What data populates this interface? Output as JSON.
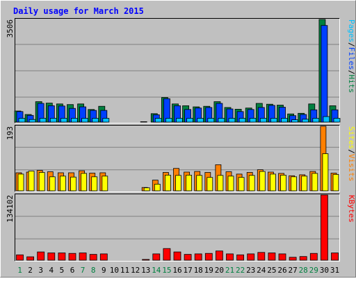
{
  "chart_data": {
    "type": "bar",
    "title": "Daily usage for March 2015",
    "categories": [
      "1",
      "2",
      "3",
      "4",
      "5",
      "6",
      "7",
      "8",
      "9",
      "10",
      "11",
      "12",
      "13",
      "14",
      "15",
      "16",
      "17",
      "18",
      "19",
      "20",
      "21",
      "22",
      "23",
      "24",
      "25",
      "26",
      "27",
      "28",
      "29",
      "30",
      "31"
    ],
    "weekend_days": [
      "1",
      "7",
      "8",
      "14",
      "15",
      "21",
      "22",
      "28",
      "29"
    ],
    "panels": [
      {
        "id": "hits-files-pages",
        "ymax": 3506,
        "ymax_label": "3506",
        "right_label": [
          "Pages",
          "/",
          "Files",
          "/",
          "Hits"
        ],
        "series": [
          {
            "name": "Hits",
            "color": "#008040",
            "values": [
              380,
              260,
              700,
              650,
              620,
              600,
              620,
              430,
              540,
              0,
              0,
              0,
              15,
              290,
              840,
              620,
              560,
              520,
              540,
              700,
              500,
              440,
              480,
              640,
              610,
              580,
              280,
              300,
              620,
              3506,
              560
            ]
          },
          {
            "name": "Files",
            "color": "#0040ff",
            "values": [
              360,
              230,
              640,
              560,
              550,
              470,
              520,
              400,
              400,
              0,
              0,
              0,
              10,
              250,
              800,
              560,
              430,
              480,
              500,
              640,
              450,
              360,
              430,
              500,
              570,
              510,
              220,
              260,
              420,
              3300,
              420
            ]
          },
          {
            "name": "Pages",
            "color": "#00c0ff",
            "values": [
              130,
              90,
              130,
              130,
              130,
              130,
              130,
              130,
              130,
              0,
              0,
              0,
              4,
              130,
              130,
              130,
              130,
              130,
              130,
              130,
              130,
              130,
              130,
              130,
              130,
              130,
              80,
              100,
              130,
              190,
              130
            ]
          }
        ]
      },
      {
        "id": "visits-sites",
        "ymax": 193,
        "ymax_label": "193",
        "right_label": [
          "Sites",
          "/",
          "Visits"
        ],
        "series": [
          {
            "name": "Visits",
            "color": "#ff8000",
            "values": [
              54,
              56,
              61,
              57,
              54,
              54,
              60,
              53,
              54,
              0,
              0,
              0,
              10,
              32,
              55,
              67,
              56,
              58,
              55,
              78,
              57,
              50,
              55,
              63,
              56,
              52,
              45,
              48,
              58,
              193,
              53
            ]
          },
          {
            "name": "Sites",
            "color": "#ffff00",
            "values": [
              50,
              59,
              55,
              42,
              44,
              41,
              52,
              42,
              44,
              0,
              0,
              0,
              9,
              20,
              47,
              46,
              47,
              46,
              40,
              46,
              44,
              40,
              46,
              58,
              50,
              47,
              42,
              44,
              52,
              111,
              49
            ]
          }
        ]
      },
      {
        "id": "kbytes",
        "ymax": 134102,
        "ymax_label": "134102",
        "right_label": [
          "KBytes"
        ],
        "series": [
          {
            "name": "KBytes",
            "color": "#ff0000",
            "values": [
              11000,
              7000,
              17000,
              15000,
              15000,
              14000,
              15000,
              12000,
              13000,
              0,
              0,
              0,
              1500,
              13000,
              24000,
              17000,
              12000,
              13000,
              14000,
              19000,
              13000,
              11000,
              13000,
              16000,
              15000,
              13000,
              6000,
              7500,
              14000,
              134102,
              15000
            ]
          }
        ]
      }
    ]
  }
}
